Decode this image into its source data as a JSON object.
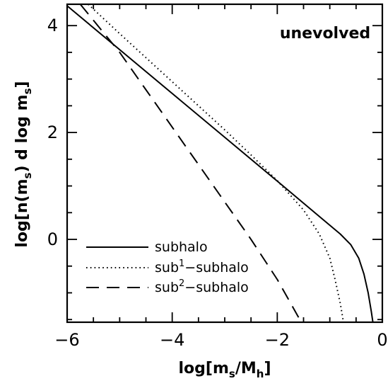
{
  "chart_data": {
    "type": "line",
    "title": "",
    "annotation": "unevolved",
    "xlabel": "log[m_s/M_h]",
    "xlabel_parts": {
      "pre": "log[m",
      "sub1": "s",
      "mid": "/M",
      "sub2": "h",
      "post": "]"
    },
    "ylabel": "log[n(m_s) d log m_s]",
    "ylabel_parts": {
      "pre": "log[n(m",
      "sub1": "s",
      "mid": ") d log m",
      "sub2": "s",
      "post": "]"
    },
    "xlim": [
      -6,
      0
    ],
    "ylim": [
      -1.55,
      4.4
    ],
    "xticks": [
      -6,
      -4,
      -2,
      0
    ],
    "xtick_labels": [
      "−6",
      "−4",
      "−2",
      "0"
    ],
    "yticks": [
      0,
      2,
      4
    ],
    "ytick_labels": [
      "0",
      "2",
      "4"
    ],
    "grid": false,
    "legend_position": "bottom-left",
    "series": [
      {
        "name": "subhalo",
        "legend_label": {
          "pre": "subhalo",
          "sup": "",
          "post": ""
        },
        "style": "solid",
        "points": [
          [
            -6,
            4.37
          ],
          [
            -5,
            3.55
          ],
          [
            -4,
            2.73
          ],
          [
            -3,
            1.91
          ],
          [
            -2,
            1.09
          ],
          [
            -1.2,
            0.43
          ],
          [
            -0.8,
            0.1
          ],
          [
            -0.6,
            -0.1
          ],
          [
            -0.45,
            -0.35
          ],
          [
            -0.35,
            -0.65
          ],
          [
            -0.27,
            -1.0
          ],
          [
            -0.21,
            -1.35
          ],
          [
            -0.18,
            -1.55
          ]
        ]
      },
      {
        "name": "sub¹−subhalo",
        "legend_label": {
          "pre": "sub",
          "sup": "1",
          "post": "−subhalo"
        },
        "style": "dotted",
        "points": [
          [
            -5.6,
            4.4
          ],
          [
            -5,
            3.85
          ],
          [
            -4,
            2.95
          ],
          [
            -3,
            2.05
          ],
          [
            -2.5,
            1.58
          ],
          [
            -2,
            1.1
          ],
          [
            -1.5,
            0.55
          ],
          [
            -1.2,
            0.1
          ],
          [
            -1.0,
            -0.35
          ],
          [
            -0.9,
            -0.75
          ],
          [
            -0.8,
            -1.2
          ],
          [
            -0.74,
            -1.55
          ]
        ]
      },
      {
        "name": "sub²−subhalo",
        "legend_label": {
          "pre": "sub",
          "sup": "2",
          "post": "−subhalo"
        },
        "style": "dashed",
        "points": [
          [
            -5.75,
            4.4
          ],
          [
            -5.5,
            4.1
          ],
          [
            -5,
            3.5
          ],
          [
            -4.5,
            2.8
          ],
          [
            -4,
            2.1
          ],
          [
            -3.5,
            1.4
          ],
          [
            -3,
            0.7
          ],
          [
            -2.5,
            0.0
          ],
          [
            -2.2,
            -0.45
          ],
          [
            -2.0,
            -0.75
          ],
          [
            -1.8,
            -1.1
          ],
          [
            -1.6,
            -1.45
          ],
          [
            -1.55,
            -1.55
          ]
        ]
      }
    ]
  }
}
